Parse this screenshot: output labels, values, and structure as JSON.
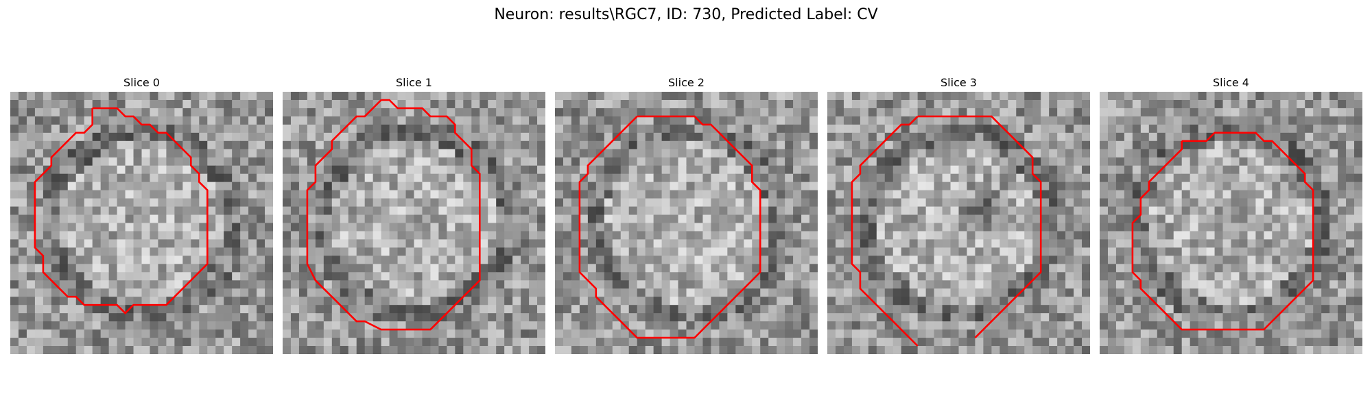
{
  "figure": {
    "title": "Neuron: results\\RGC7, ID: 730, Predicted Label: CV"
  },
  "panels": [
    {
      "title": "Slice 0",
      "contour_color": "#ff0000"
    },
    {
      "title": "Slice 1",
      "contour_color": "#ff0000"
    },
    {
      "title": "Slice 2",
      "contour_color": "#ff0000"
    },
    {
      "title": "Slice 3",
      "contour_color": "#ff0000"
    },
    {
      "title": "Slice 4",
      "contour_color": "#ff0000"
    }
  ],
  "image_grid": {
    "pixels_per_side": 32,
    "colormap": "gray"
  }
}
